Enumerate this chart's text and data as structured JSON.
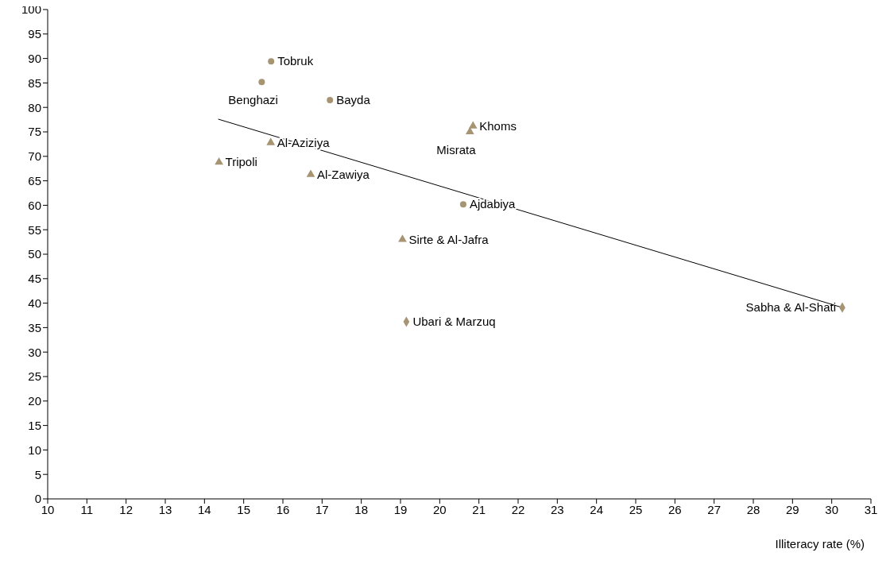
{
  "chart_data": {
    "type": "scatter",
    "xlabel": "Illiteracy rate (%)",
    "xlim": [
      10,
      31
    ],
    "xticks": [
      10,
      11,
      12,
      13,
      14,
      15,
      16,
      17,
      18,
      19,
      20,
      21,
      22,
      23,
      24,
      25,
      26,
      27,
      28,
      29,
      30,
      31
    ],
    "ylim": [
      0,
      100
    ],
    "yticks": [
      0,
      5,
      10,
      15,
      20,
      25,
      30,
      35,
      40,
      45,
      50,
      55,
      60,
      65,
      70,
      75,
      80,
      85,
      90,
      95,
      100
    ],
    "grid": false,
    "legend": false,
    "series": [
      {
        "marker": "circle",
        "color": "#a69473",
        "x": [
          15.7,
          15.46,
          17.2,
          20.6
        ],
        "values": [
          89.4,
          85.2,
          81.5,
          60.2
        ]
      },
      {
        "marker": "triangle",
        "color": "#a69473",
        "x": [
          20.85,
          20.77,
          15.69,
          14.37,
          16.71,
          19.05
        ],
        "values": [
          76.2,
          75.0,
          72.8,
          68.8,
          66.3,
          53.0
        ]
      },
      {
        "marker": "diamond",
        "color": "#a69473",
        "x": [
          19.15,
          30.27
        ],
        "values": [
          36.2,
          39.1
        ]
      },
      {
        "type": "line",
        "marker": "none",
        "color": "#000000",
        "x": [
          14.35,
          30.27
        ],
        "values": [
          77.6,
          39.1
        ]
      }
    ],
    "annotations": [
      {
        "text": "Tobruk",
        "x": 15.7,
        "y": 89.4
      },
      {
        "text": "Benghazi",
        "x": 15.46,
        "y": 85.2
      },
      {
        "text": "Bayda",
        "x": 17.2,
        "y": 81.5
      },
      {
        "text": "Khoms",
        "x": 20.85,
        "y": 76.2
      },
      {
        "text": "Misrata",
        "x": 20.77,
        "y": 75.0
      },
      {
        "text": "Al-Aziziya",
        "x": 15.69,
        "y": 72.8
      },
      {
        "text": "Tripoli",
        "x": 14.37,
        "y": 68.8
      },
      {
        "text": "Al-Zawiya",
        "x": 16.71,
        "y": 66.3
      },
      {
        "text": "Ajdabiya",
        "x": 20.6,
        "y": 60.2
      },
      {
        "text": "Sirte & Al-Jafra",
        "x": 19.05,
        "y": 53.0
      },
      {
        "text": "Ubari & Marzuq",
        "x": 19.15,
        "y": 36.2
      },
      {
        "text": "Sabha & Al-Shati",
        "x": 30.27,
        "y": 39.1
      }
    ]
  }
}
